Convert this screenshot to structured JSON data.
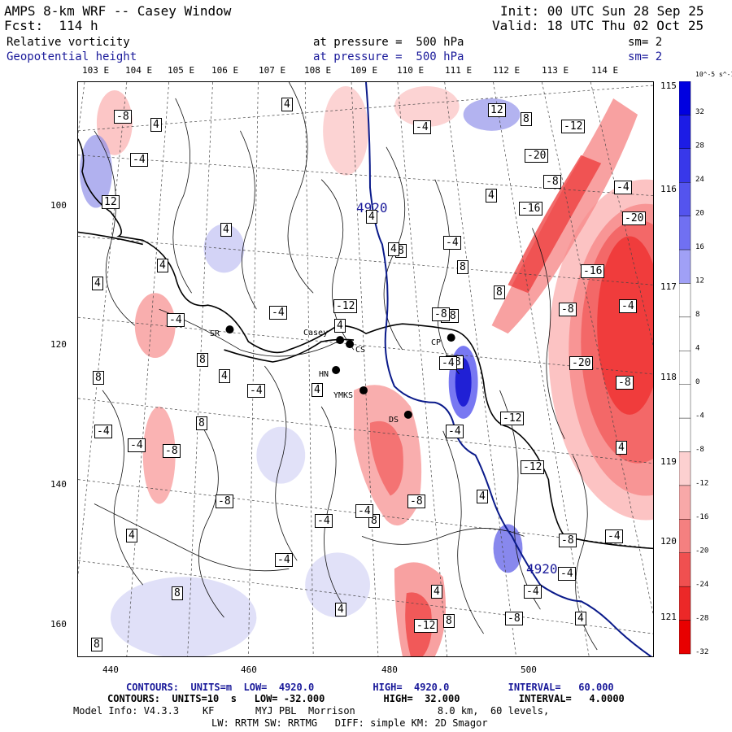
{
  "header": {
    "title": "AMPS 8-km WRF -- Casey Window",
    "forecast": "Fcst:  114 h",
    "init": "Init: 00 UTC Sun 28 Sep 25",
    "valid": "Valid: 18 UTC Thu 02 Oct 25",
    "field1": "Relative vorticity",
    "field1_level": "at pressure =  500 hPa",
    "field1_sm": "sm= 2",
    "field2": "Geopotential height",
    "field2_level": "at pressure =  500 hPa",
    "field2_sm": "sm= 2"
  },
  "axes": {
    "lon_top": [
      "103 E",
      "104 E",
      "105 E",
      "106 E",
      "107 E",
      "108 E",
      "109 E",
      "110 E",
      "111 E",
      "112 E",
      "113 E",
      "114 E"
    ],
    "lon_right": [
      "115 E",
      "116 E",
      "117 E",
      "118 E",
      "119 E",
      "120 E",
      "121 E"
    ],
    "x_ticks": [
      "440",
      "460",
      "480",
      "500"
    ],
    "y_ticks": [
      "100",
      "120",
      "140",
      "160"
    ]
  },
  "stations": [
    {
      "name": "SR"
    },
    {
      "name": "Casey"
    },
    {
      "name": "CS"
    },
    {
      "name": "HN"
    },
    {
      "name": "YMKS"
    },
    {
      "name": "DS"
    },
    {
      "name": "CP"
    }
  ],
  "height_labels": [
    "4920",
    "4920"
  ],
  "vort_labels": [
    "-8",
    "4",
    "-4",
    "12",
    "4",
    "-4",
    "12",
    "8",
    "-12",
    "-20",
    "-8",
    "-4",
    "4",
    "-16",
    "-20",
    "4",
    "8",
    "-4",
    "4",
    "4",
    "-8",
    "-16",
    "8",
    "-4",
    "-8",
    "-4",
    "4",
    "8",
    "-4",
    "-8",
    "-20",
    "8",
    "4",
    "-8",
    "-4",
    "-8",
    "4",
    "-12",
    "8",
    "-4",
    "-4",
    "-8",
    "-4",
    "4",
    "-12",
    "-8",
    "8",
    "-4",
    "-8",
    "4",
    "-4",
    "-8",
    "-4",
    "4",
    "4",
    "-8",
    "8",
    "-12",
    "4",
    "-4",
    "-4",
    "8",
    "8",
    "4",
    "4",
    "-12",
    "-4",
    "4",
    "-4",
    "8"
  ],
  "colorbar": {
    "unit": "10^-5 s^-1",
    "values": [
      "32",
      "28",
      "24",
      "20",
      "16",
      "12",
      "8",
      "4",
      "0",
      "-4",
      "-8",
      "-12",
      "-16",
      "-20",
      "-24",
      "-28",
      "-32"
    ]
  },
  "footer": {
    "line1": "CONTOURS:  UNITS=m  LOW=  4920.0          HIGH=  4920.0          INTERVAL=   60.000",
    "line2": "CONTOURS:  UNITS=10  s   LOW= -32.000          HIGH=  32.000          INTERVAL=   4.0000",
    "line3": "Model Info: V4.3.3    KF       MYJ PBL  Morrison              8.0 km,  60 levels,",
    "line4": "LW: RRTM SW: RRTMG   DIFF: simple KM: 2D Smagor"
  },
  "colors": {
    "height_contour": "#0a1a8a",
    "positive": "#2020e0",
    "negative": "#ee1010"
  }
}
